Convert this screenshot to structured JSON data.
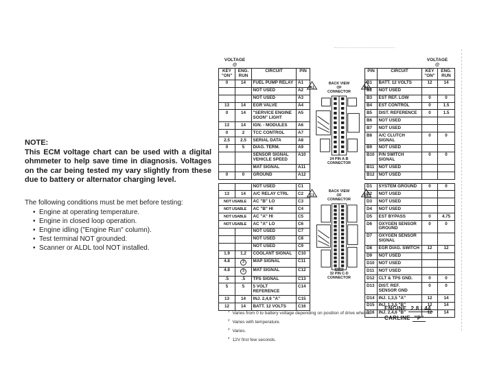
{
  "colors": {
    "ink": "#1c1c1c",
    "paper": "#ffffff"
  },
  "note": {
    "title": "NOTE:",
    "body": "This ECM voltage chart can be used with a digital ohmmeter to help save time in diagnosis. Voltages on the car being tested my vary slightly from these due to battery or alternator charging level."
  },
  "conditions": {
    "intro": "The following conditions must be met before testing:",
    "items": [
      "Engine at operating temperature.",
      "Engine in closed loop operation.",
      "Engine idling (\"Engine Run\" column).",
      "Test terminal NOT grounded.",
      "Scanner or ALDL tool NOT installed."
    ]
  },
  "left_table": {
    "voltage_label": "VOLTAGE\n@",
    "headers": {
      "key_on": "KEY\n\"ON\"",
      "eng_run": "ENG.\nRUN",
      "circuit": "CIRCUIT",
      "pin": "PIN"
    },
    "sections": [
      {
        "rows": [
          {
            "m": "4",
            "k": "0",
            "e": "14",
            "c": "FUEL PUMP RELAY",
            "p": "A1"
          },
          {
            "c": "NOT USED",
            "p": "A2"
          },
          {
            "c": "NOT USED",
            "p": "A3"
          },
          {
            "k": "13",
            "e": "14",
            "c": "EGR VALVE",
            "p": "A4"
          },
          {
            "k": "0",
            "e": "14",
            "c": "\"SERVICE ENGINE\nSOON\" LIGHT",
            "p": "A5"
          },
          {
            "k": "13",
            "e": "14",
            "c": "IGN. - MODULES",
            "p": "A6"
          },
          {
            "k": "0",
            "e": "2",
            "c": "TCC CONTROL",
            "p": "A7"
          },
          {
            "k": "2.5",
            "e": "2.5",
            "c": "SERIAL DATA",
            "p": "A8"
          },
          {
            "k": "0",
            "e": "5",
            "c": "DIAG. TERM.",
            "p": "A9"
          },
          {
            "m": "1",
            "c": "SENSOR SIGNAL\nVEHICLE SPEED",
            "p": "A10"
          },
          {
            "m": "2",
            "c": "MAT SIGNAL",
            "p": "A11"
          },
          {
            "k": "0",
            "e": "0",
            "c": "GROUND",
            "p": "A12"
          }
        ]
      },
      {
        "rows": [
          {
            "c": "NOT USED",
            "p": "C1"
          },
          {
            "k": "13",
            "e": "14",
            "c": "A/C RELAY CTRL",
            "p": "C2"
          },
          {
            "span": "NOT USABLE",
            "c": "AC \"B\" LO",
            "p": "C3"
          },
          {
            "span": "NOT USABLE",
            "c": "AC \"B\" HI",
            "p": "C4"
          },
          {
            "span": "NOT USABLE",
            "c": "AC \"A\" HI",
            "p": "C5"
          },
          {
            "span": "NOT USABLE",
            "c": "AC \"A\" LO",
            "p": "C6"
          },
          {
            "c": "NOT USED",
            "p": "C7"
          },
          {
            "c": "NOT USED",
            "p": "C8"
          },
          {
            "c": "NOT USED",
            "p": "C9"
          },
          {
            "m": "2",
            "k": "1.9",
            "e": "1.2",
            "c": "COOLANT SIGNAL",
            "p": "C10"
          },
          {
            "k": "4.8",
            "en": "3",
            "c": "MAP SIGNAL",
            "p": "C11"
          },
          {
            "k": "4.8",
            "en": "3",
            "c": "MAT SIGNAL",
            "p": "C12"
          },
          {
            "k": ".5",
            "e": ".5",
            "c": "TPS SIGNAL",
            "p": "C13"
          },
          {
            "k": "5",
            "e": "5",
            "c": "5 VOLT\nREFERENCE",
            "p": "C14"
          },
          {
            "k": "13",
            "e": "14",
            "c": "INJ. 2,4,6 \"A\"",
            "p": "C15"
          },
          {
            "k": "12",
            "e": "14",
            "c": "BATT. 12 VOLTS",
            "p": "C16"
          }
        ]
      }
    ]
  },
  "right_table": {
    "voltage_label": "VOLTAGE\n@",
    "headers": {
      "pin": "PIN",
      "circuit": "CIRCUIT",
      "key_on": "KEY\n\"ON\"",
      "eng_run": "ENG.\nRUN"
    },
    "sections": [
      {
        "rows": [
          {
            "p": "B1",
            "c": "BATT. 12 VOLTS",
            "k": "12",
            "e": "14"
          },
          {
            "p": "B2",
            "c": "NOT USED"
          },
          {
            "p": "B3",
            "c": "EST REF. LOW",
            "k": "0",
            "e": "0"
          },
          {
            "p": "B4",
            "c": "EST CONTROL",
            "k": "0",
            "e": "1.5"
          },
          {
            "p": "B5",
            "c": "DIST. REFERENCE",
            "k": "0",
            "e": "1.5"
          },
          {
            "p": "B6",
            "c": "NOT USED"
          },
          {
            "p": "B7",
            "c": "NOT USED"
          },
          {
            "p": "B8",
            "c": "A/C CLUTCH SIGNAL",
            "k": "0",
            "e": "0"
          },
          {
            "p": "B9",
            "c": "NOT USED"
          },
          {
            "p": "B10",
            "c": "P/N SWITCH\nSIGNAL",
            "k": "0",
            "e": "0"
          },
          {
            "p": "B11",
            "c": "NOT USED"
          },
          {
            "p": "B12",
            "c": "NOT USED"
          }
        ]
      },
      {
        "rows": [
          {
            "p": "D1",
            "c": "SYSTEM GROUND",
            "k": "0",
            "e": "0"
          },
          {
            "p": "D2",
            "c": "NOT USED"
          },
          {
            "p": "D3",
            "c": "NOT USED"
          },
          {
            "p": "D4",
            "c": "NOT USED"
          },
          {
            "p": "D5",
            "c": "EST BYPASS",
            "k": "0",
            "e": "4.75"
          },
          {
            "p": "D6",
            "c": "OXYGEN SENSOR\nGROUND",
            "k": "0",
            "e": "0"
          },
          {
            "p": "D7",
            "c": "OXYGEN SENSOR\nSIGNAL",
            "mr": "1"
          },
          {
            "p": "D8",
            "c": "EGR DIAG. SWITCH",
            "k": "12",
            "e": "12"
          },
          {
            "p": "D9",
            "c": "NOT USED"
          },
          {
            "p": "D10",
            "c": "NOT USED"
          },
          {
            "p": "D11",
            "c": "NOT USED"
          },
          {
            "p": "D12",
            "c": "CLT & TPS GND.",
            "k": "0",
            "e": "0"
          },
          {
            "p": "D13",
            "c": "DIST. REF.\nSENSOR GND",
            "k": "0",
            "e": "0"
          },
          {
            "p": "D14",
            "c": "INJ. 1,3,5 \"A\"",
            "k": "12",
            "e": "14"
          },
          {
            "p": "D15",
            "c": "INJ. 1,3,5 \"B\"",
            "k": "12",
            "e": "14"
          },
          {
            "p": "D16",
            "c": "INJ. 2,4,6 \"B\"",
            "k": "12",
            "e": "14"
          }
        ]
      }
    ]
  },
  "connectors": [
    {
      "title": "BACK VIEW\nOF\nCONNECTOR",
      "left_marker": "A1",
      "right_marker": "B1",
      "caption": "24 PIN A-B\nCONNECTOR",
      "pin_rows": 12
    },
    {
      "title": "BACK VIEW\nOF\nCONNECTOR",
      "left_marker": "C1",
      "right_marker": "D1",
      "caption": "32 PIN C-D\nCONNECTOR",
      "pin_rows": 16
    }
  ],
  "footnotes": [
    {
      "n": "1",
      "text": "Varies from 0 to battery voltage depending on position of drive wheels."
    },
    {
      "n": "2",
      "text": "Varies with temperature."
    },
    {
      "n": "3",
      "text": "Varies."
    },
    {
      "n": "4",
      "text": "12V first few seconds."
    }
  ],
  "footer": {
    "engine_label": "ENGINE",
    "engine_value": "2.8 L44",
    "carline_label": "CARLINE",
    "carline_value": "\"P\""
  }
}
